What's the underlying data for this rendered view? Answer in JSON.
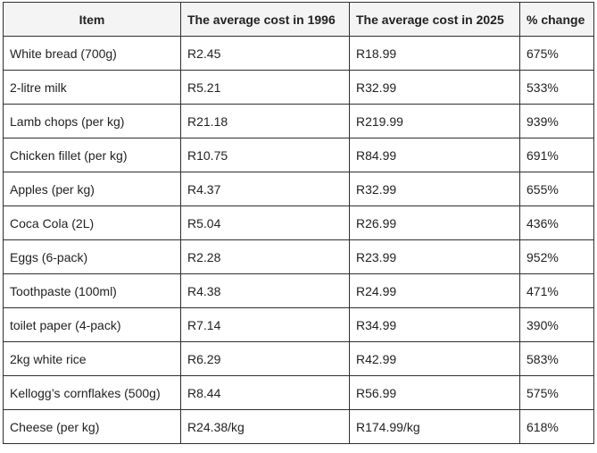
{
  "table": {
    "headers": [
      "Item",
      "The average cost in 1996",
      "The average cost in 2025",
      "% change"
    ],
    "rows": [
      [
        "White bread (700g)",
        "R2.45",
        "R18.99",
        "675%"
      ],
      [
        "2-litre milk",
        "R5.21",
        "R32.99",
        "533%"
      ],
      [
        "Lamb chops (per kg)",
        "R21.18",
        "R219.99",
        "939%"
      ],
      [
        "Chicken fillet (per kg)",
        "R10.75",
        "R84.99",
        "691%"
      ],
      [
        "Apples (per kg)",
        "R4.37",
        "R32.99",
        "655%"
      ],
      [
        "Coca Cola (2L)",
        "R5.04",
        "R26.99",
        "436%"
      ],
      [
        "Eggs (6-pack)",
        "R2.28",
        "R23.99",
        "952%"
      ],
      [
        "Toothpaste (100ml)",
        "R4.38",
        "R24.99",
        "471%"
      ],
      [
        "toilet paper (4-pack)",
        "R7.14",
        "R34.99",
        "390%"
      ],
      [
        "2kg white rice",
        "R6.29",
        "R42.99",
        "583%"
      ],
      [
        "Kellogg’s cornflakes (500g)",
        "R8.44",
        "R56.99",
        "575%"
      ],
      [
        "Cheese (per kg)",
        "R24.38/kg",
        "R174.99/kg",
        "618%"
      ]
    ]
  }
}
